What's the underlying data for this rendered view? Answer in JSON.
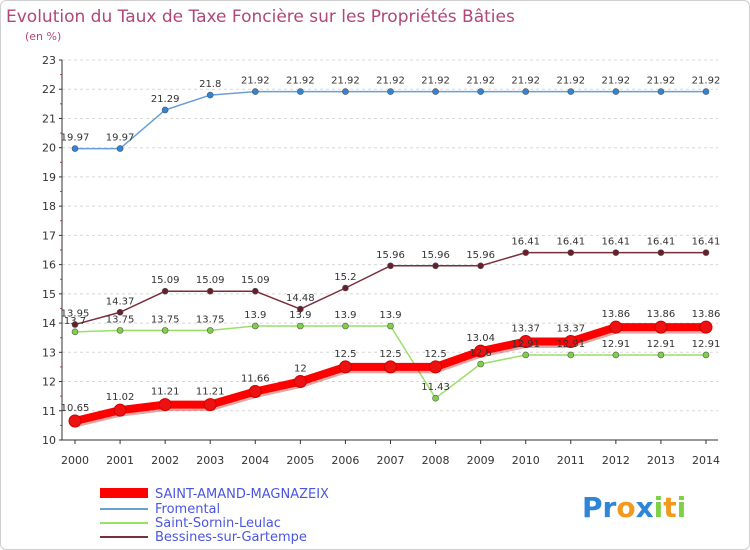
{
  "chart_data": {
    "type": "line",
    "title": "Evolution du Taux de Taxe Foncière sur les Propriétés Bâties",
    "subtitle": "(en %)",
    "xlabel": "",
    "ylabel": "",
    "x": [
      "2000",
      "2001",
      "2002",
      "2003",
      "2004",
      "2005",
      "2006",
      "2007",
      "2008",
      "2009",
      "2010",
      "2011",
      "2012",
      "2013",
      "2014"
    ],
    "ylim": [
      10,
      23
    ],
    "yticks": [
      "10",
      "11",
      "12",
      "13",
      "14",
      "15",
      "16",
      "17",
      "18",
      "19",
      "20",
      "21",
      "22",
      "23"
    ],
    "grid": "horizontal dashed",
    "legend_position": "bottom-left",
    "series": [
      {
        "name": "SAINT-AMAND-MAGNAZEIX",
        "color": "#ff0000",
        "marker_color": "#ee1111",
        "emphasis": "thick",
        "values": [
          10.65,
          11.02,
          11.21,
          11.21,
          11.66,
          12,
          12.5,
          12.5,
          12.5,
          13.04,
          13.37,
          13.37,
          13.86,
          13.86,
          13.86
        ],
        "labels": [
          "10.65",
          "11.02",
          "11.21",
          "11.21",
          "11.66",
          "12",
          "12.5",
          "12.5",
          "12.5",
          "13.04",
          "13.37",
          "13.37",
          "13.86",
          "13.86",
          "13.86"
        ]
      },
      {
        "name": "Fromental",
        "color": "#6a9fd4",
        "marker_color": "#2f86d8",
        "emphasis": "normal",
        "values": [
          19.97,
          19.97,
          21.29,
          21.8,
          21.92,
          21.92,
          21.92,
          21.92,
          21.92,
          21.92,
          21.92,
          21.92,
          21.92,
          21.92,
          21.92
        ],
        "labels": [
          "19.97",
          "19.97",
          "21.29",
          "21.8",
          "21.92",
          "21.92",
          "21.92",
          "21.92",
          "21.92",
          "21.92",
          "21.92",
          "21.92",
          "21.92",
          "21.92",
          "21.92"
        ]
      },
      {
        "name": "Saint-Sornin-Leulac",
        "color": "#99e066",
        "marker_color": "#7ed147",
        "emphasis": "normal",
        "values": [
          13.7,
          13.75,
          13.75,
          13.75,
          13.9,
          13.9,
          13.9,
          13.9,
          11.43,
          12.6,
          12.91,
          12.91,
          12.91,
          12.91,
          12.91
        ],
        "labels": [
          "13.7",
          "13.75",
          "13.75",
          "13.75",
          "13.9",
          "13.9",
          "13.9",
          "13.9",
          "11.43",
          "12.6",
          "12.91",
          "12.91",
          "12.91",
          "12.91",
          "12.91"
        ]
      },
      {
        "name": "Bessines-sur-Gartempe",
        "color": "#7a2e3a",
        "marker_color": "#6a1e2a",
        "emphasis": "normal",
        "values": [
          13.95,
          14.37,
          15.09,
          15.09,
          15.09,
          14.48,
          15.2,
          15.96,
          15.96,
          15.96,
          16.41,
          16.41,
          16.41,
          16.41,
          16.41
        ],
        "labels": [
          "13.95",
          "14.37",
          "15.09",
          "15.09",
          "15.09",
          "14.48",
          "15.2",
          "15.96",
          "15.96",
          "15.96",
          "16.41",
          "16.41",
          "16.41",
          "16.41",
          "16.41"
        ]
      }
    ]
  },
  "brand": {
    "letters": [
      "P",
      "r",
      "o",
      "x",
      "i",
      "t",
      "i"
    ],
    "colors": [
      "#2f86d8",
      "#2f86d8",
      "#f29a1f",
      "#2f86d8",
      "#7ed147",
      "#f29a1f",
      "#7ed147"
    ]
  }
}
